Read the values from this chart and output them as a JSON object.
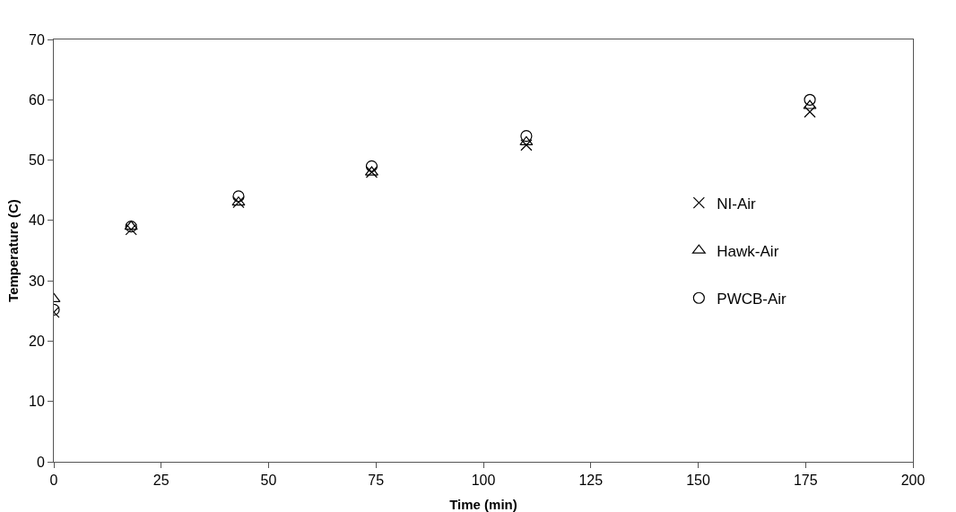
{
  "chart_data": {
    "type": "scatter",
    "xlabel": "Time (min)",
    "ylabel": "Temperature (C)",
    "x": [
      0,
      18,
      43,
      74,
      110,
      176
    ],
    "series": [
      {
        "name": "NI-Air",
        "color": "#000000",
        "marker": "cross",
        "values": [
          24.8,
          38.5,
          43,
          48,
          52.5,
          58
        ]
      },
      {
        "name": "Hawk-Air",
        "color": "#000000",
        "marker": "triangle",
        "values": [
          27,
          39,
          43,
          48,
          53,
          59
        ]
      },
      {
        "name": "PWCB-Air",
        "color": "#000000",
        "marker": "circle",
        "values": [
          25.2,
          39,
          44,
          49,
          54,
          60
        ]
      }
    ],
    "xlim": [
      0,
      200
    ],
    "xticks": [
      0,
      25,
      50,
      75,
      100,
      125,
      150,
      175,
      200
    ],
    "ylim": [
      0,
      70
    ],
    "yticks": [
      0,
      10,
      20,
      30,
      40,
      50,
      60,
      70
    ],
    "grid": false,
    "legend": "right"
  }
}
